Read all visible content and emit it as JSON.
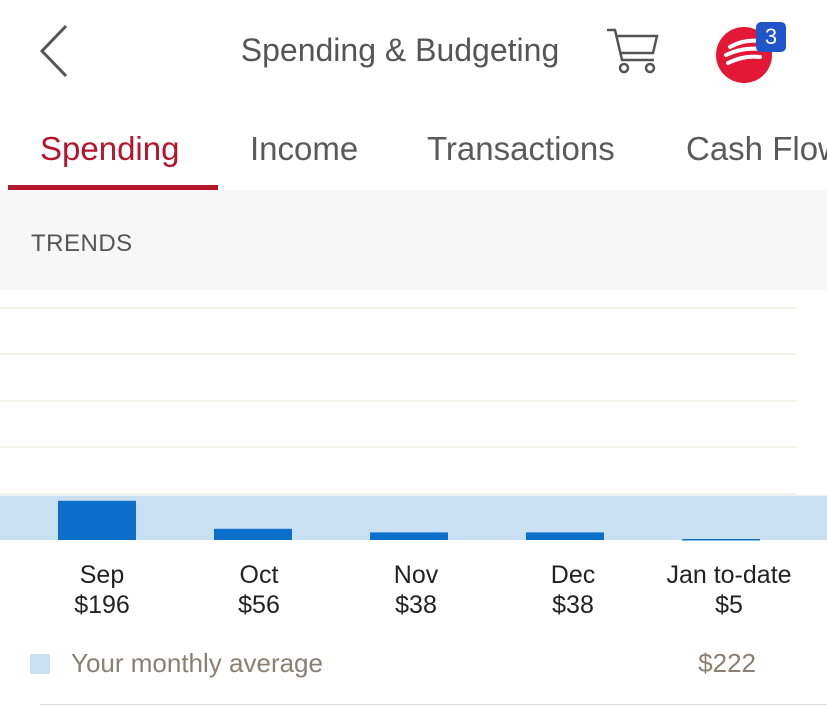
{
  "header": {
    "title": "Spending & Budgeting",
    "notifications_count": "3",
    "back_icon": "chevron-left-icon",
    "cart_icon": "shopping-cart-icon"
  },
  "tabs": [
    {
      "label": "Spending",
      "active": true
    },
    {
      "label": "Income",
      "active": false
    },
    {
      "label": "Transactions",
      "active": false
    },
    {
      "label": "Cash Flow",
      "active": false
    }
  ],
  "section": {
    "title": "TRENDS"
  },
  "chart_data": {
    "type": "bar",
    "categories": [
      "Sep",
      "Oct",
      "Nov",
      "Dec",
      "Jan to-date"
    ],
    "value_labels": [
      "$196",
      "$56",
      "$38",
      "$38",
      "$5"
    ],
    "values": [
      196,
      56,
      38,
      38,
      5
    ],
    "average": 222,
    "average_label": "Your monthly average",
    "average_value_label": "$222",
    "ylim": [
      0,
      1250
    ],
    "grid": true,
    "bar_color": "#0b6fcb",
    "average_band_color": "#c9dff2"
  },
  "colors": {
    "accent": "#b5152b",
    "brand": "#e31837",
    "badge": "#1f55c8"
  }
}
